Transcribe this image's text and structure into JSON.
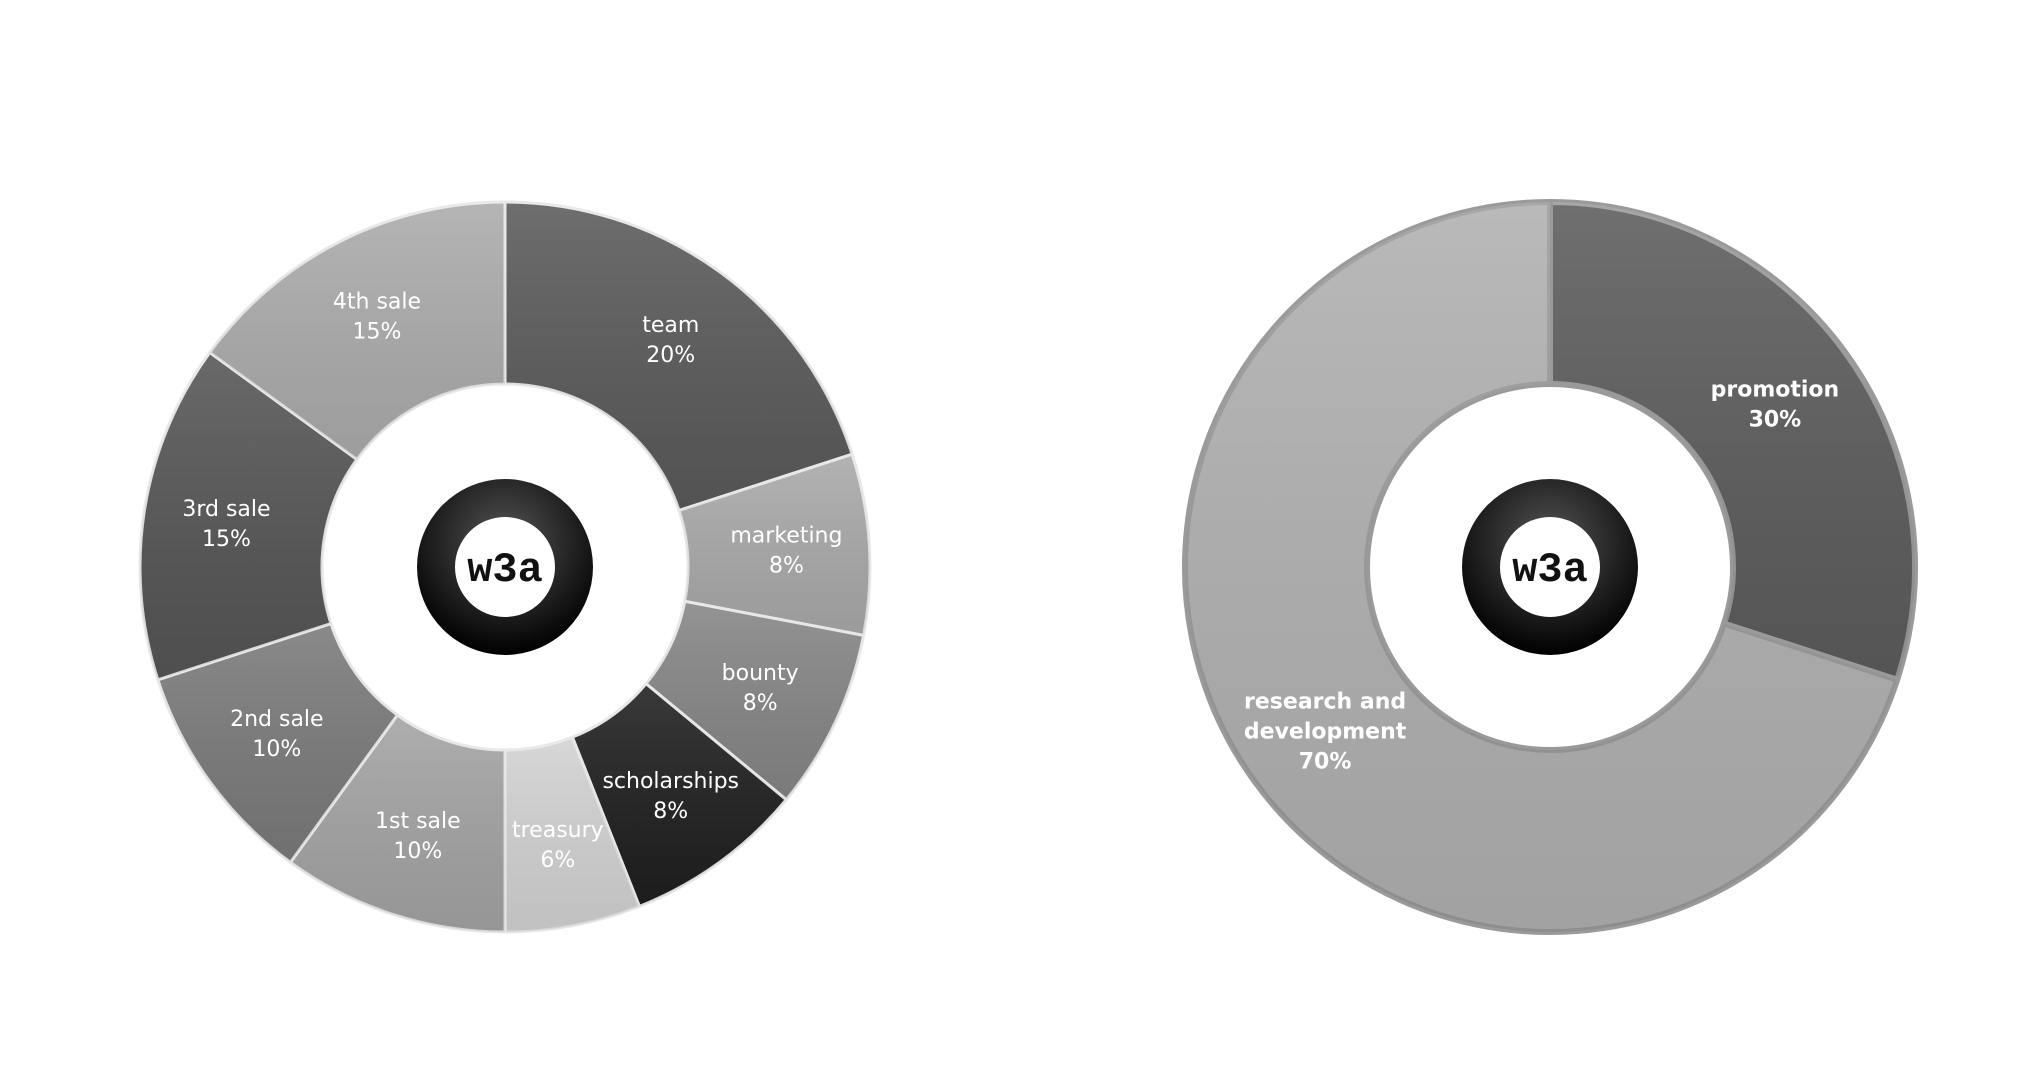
{
  "chart_data": [
    {
      "type": "pie",
      "variant": "donut",
      "title": "",
      "center_logo": "w3a",
      "slices": [
        {
          "label": "team",
          "value": 20,
          "value_label": "20%",
          "color": "#5a5a5a"
        },
        {
          "label": "marketing",
          "value": 8,
          "value_label": "8%",
          "color": "#a9a9a9"
        },
        {
          "label": "bounty",
          "value": 8,
          "value_label": "8%",
          "color": "#858585"
        },
        {
          "label": "scholarships",
          "value": 8,
          "value_label": "8%",
          "color": "#1f1f1f"
        },
        {
          "label": "treasury",
          "value": 6,
          "value_label": "6%",
          "color": "#d2d2d2"
        },
        {
          "label": "1st sale",
          "value": 10,
          "value_label": "10%",
          "color": "#a3a3a3"
        },
        {
          "label": "2nd sale",
          "value": 10,
          "value_label": "10%",
          "color": "#7a7a7a"
        },
        {
          "label": "3rd sale",
          "value": 15,
          "value_label": "15%",
          "color": "#555555"
        },
        {
          "label": "4th sale",
          "value": 15,
          "value_label": "15%",
          "color": "#ababab"
        }
      ]
    },
    {
      "type": "pie",
      "variant": "donut",
      "title": "",
      "center_logo": "w3a",
      "slices": [
        {
          "label": "promotion",
          "value": 30,
          "value_label": "30%",
          "color": "#5c5c5c"
        },
        {
          "label": "research and development",
          "value": 70,
          "value_label": "70%",
          "color": "#b0b0b0"
        }
      ]
    }
  ]
}
